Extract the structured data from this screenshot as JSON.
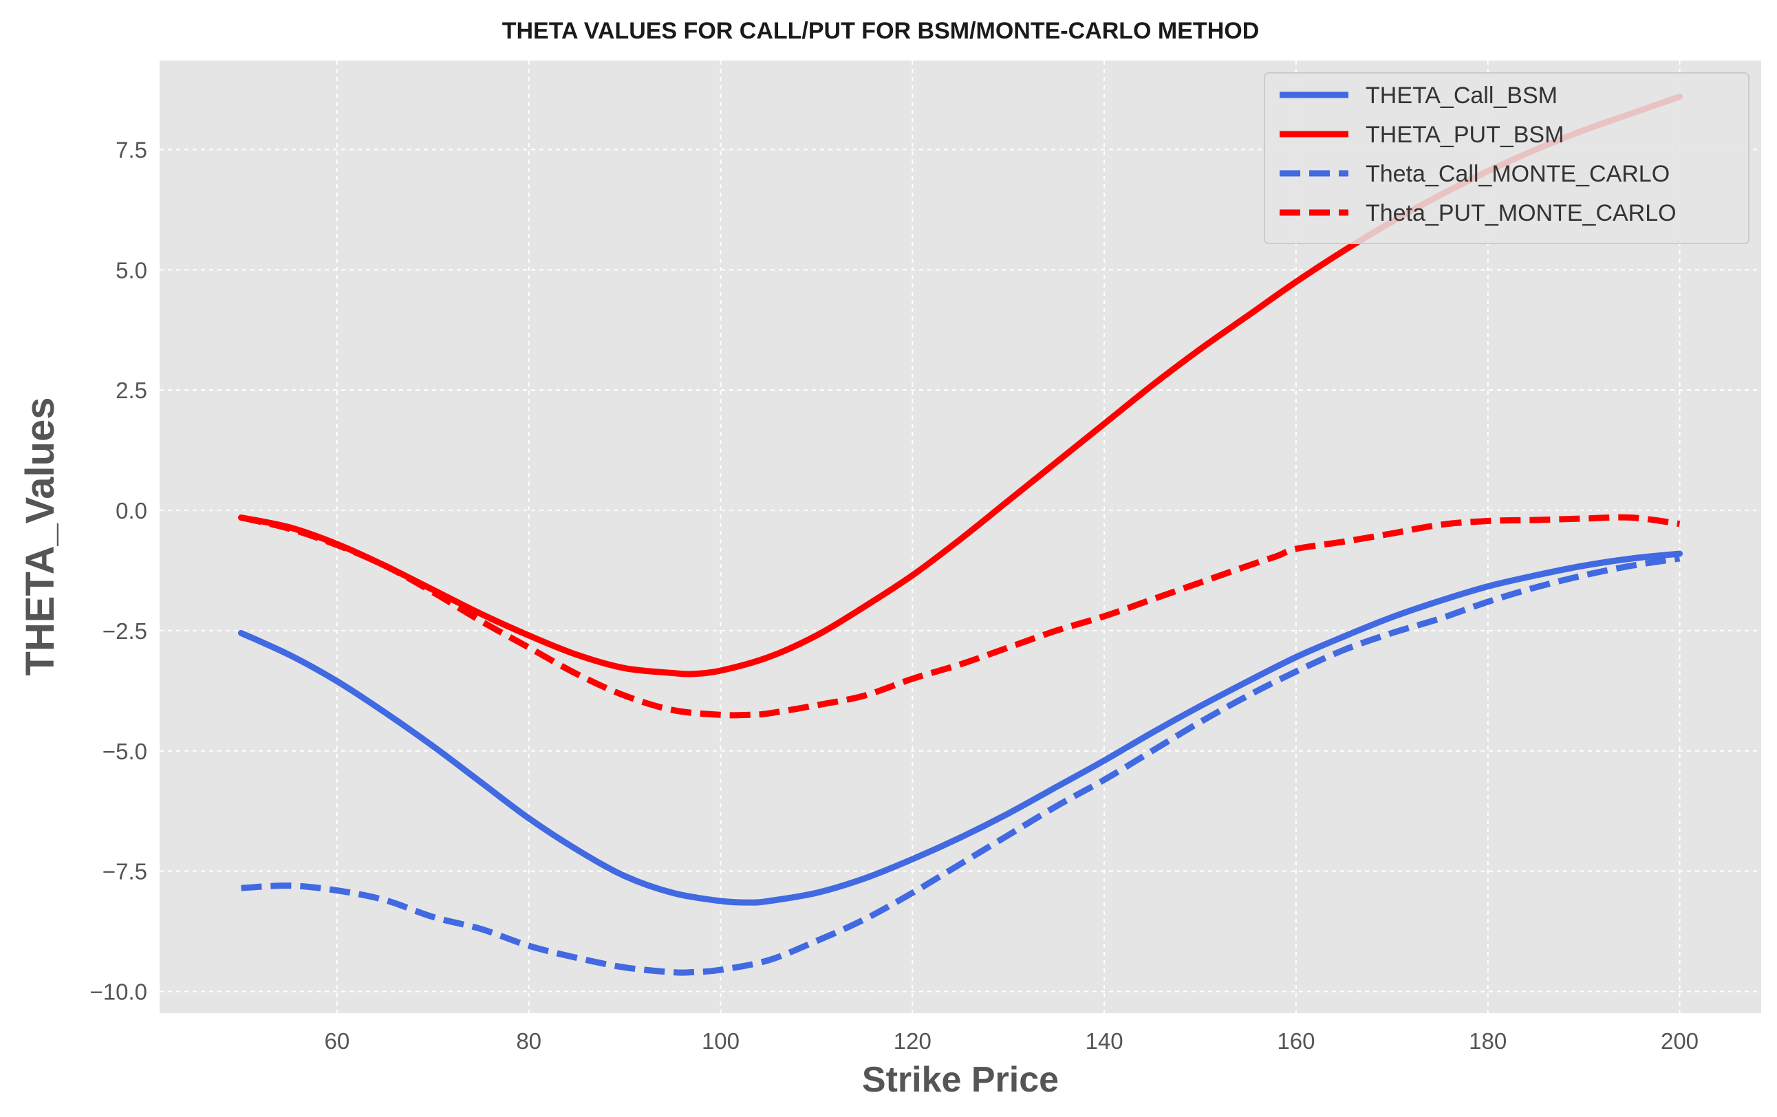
{
  "colors": {
    "background": "#ffffff",
    "plot_background": "#e5e5e5",
    "grid": "#ffffff",
    "call": "#4169e1",
    "put": "#ff0000"
  },
  "chart_data": {
    "type": "line",
    "title": "THETA VALUES FOR CALL/PUT FOR BSM/MONTE-CARLO METHOD",
    "xlabel": "Strike Price",
    "ylabel": "THETA_Values",
    "xlim": [
      41.5,
      208.5
    ],
    "ylim": [
      -10.45,
      9.35
    ],
    "xticks": [
      60,
      80,
      100,
      120,
      140,
      160,
      180,
      200
    ],
    "xtick_labels": [
      "60",
      "80",
      "100",
      "120",
      "140",
      "160",
      "180",
      "200"
    ],
    "yticks": [
      -10.0,
      -7.5,
      -5.0,
      -2.5,
      0.0,
      2.5,
      5.0,
      7.5
    ],
    "ytick_labels": [
      "−10.0",
      "−7.5",
      "−5.0",
      "−2.5",
      "0.0",
      "2.5",
      "5.0",
      "7.5"
    ],
    "grid": true,
    "legend_position": "top-right",
    "series": [
      {
        "name": "THETA_Call_BSM",
        "style": "solid",
        "color": "#4169e1",
        "x": [
          50,
          55,
          60,
          65,
          70,
          75,
          80,
          85,
          90,
          95,
          100,
          103,
          105,
          110,
          115,
          120,
          125,
          130,
          135,
          140,
          145,
          150,
          155,
          160,
          165,
          170,
          175,
          180,
          185,
          190,
          195,
          200
        ],
        "y": [
          -2.55,
          -3.0,
          -3.55,
          -4.2,
          -4.9,
          -5.65,
          -6.4,
          -7.05,
          -7.6,
          -7.95,
          -8.12,
          -8.15,
          -8.12,
          -7.95,
          -7.65,
          -7.25,
          -6.8,
          -6.3,
          -5.75,
          -5.2,
          -4.62,
          -4.07,
          -3.55,
          -3.05,
          -2.62,
          -2.22,
          -1.88,
          -1.58,
          -1.35,
          -1.15,
          -1.0,
          -0.9
        ]
      },
      {
        "name": "THETA_PUT_BSM",
        "style": "solid",
        "color": "#ff0000",
        "x": [
          50,
          55,
          60,
          65,
          70,
          75,
          80,
          85,
          90,
          95,
          97,
          100,
          105,
          110,
          115,
          120,
          125,
          130,
          135,
          140,
          145,
          150,
          155,
          160,
          165,
          170,
          175,
          180,
          185,
          190,
          195,
          200
        ],
        "y": [
          -0.15,
          -0.35,
          -0.7,
          -1.15,
          -1.65,
          -2.15,
          -2.6,
          -3.0,
          -3.28,
          -3.38,
          -3.4,
          -3.33,
          -3.05,
          -2.6,
          -2.0,
          -1.35,
          -0.6,
          0.2,
          1.0,
          1.8,
          2.6,
          3.35,
          4.05,
          4.75,
          5.4,
          6.0,
          6.55,
          7.05,
          7.5,
          7.9,
          8.25,
          8.6
        ]
      },
      {
        "name": "Theta_Call_MONTE_CARLO",
        "style": "dashed",
        "color": "#4169e1",
        "x": [
          50,
          55,
          60,
          65,
          70,
          75,
          80,
          85,
          90,
          95,
          97,
          100,
          105,
          110,
          115,
          120,
          125,
          130,
          135,
          140,
          145,
          150,
          155,
          160,
          165,
          170,
          175,
          180,
          185,
          190,
          195,
          200
        ],
        "y": [
          -7.85,
          -7.8,
          -7.9,
          -8.1,
          -8.45,
          -8.7,
          -9.05,
          -9.3,
          -9.5,
          -9.6,
          -9.6,
          -9.55,
          -9.35,
          -8.95,
          -8.5,
          -7.95,
          -7.35,
          -6.75,
          -6.15,
          -5.6,
          -5.0,
          -4.4,
          -3.85,
          -3.35,
          -2.9,
          -2.55,
          -2.25,
          -1.9,
          -1.6,
          -1.35,
          -1.15,
          -1.0
        ]
      },
      {
        "name": "Theta_PUT_MONTE_CARLO",
        "style": "dashed",
        "color": "#ff0000",
        "x": [
          50,
          55,
          60,
          65,
          70,
          75,
          80,
          85,
          90,
          95,
          100,
          103,
          105,
          110,
          115,
          120,
          125,
          130,
          135,
          140,
          145,
          150,
          155,
          158,
          160,
          165,
          170,
          175,
          180,
          185,
          190,
          195,
          200
        ],
        "y": [
          -0.15,
          -0.38,
          -0.72,
          -1.15,
          -1.7,
          -2.3,
          -2.85,
          -3.4,
          -3.85,
          -4.15,
          -4.25,
          -4.25,
          -4.22,
          -4.05,
          -3.85,
          -3.5,
          -3.2,
          -2.85,
          -2.5,
          -2.2,
          -1.85,
          -1.5,
          -1.15,
          -0.95,
          -0.8,
          -0.65,
          -0.48,
          -0.3,
          -0.22,
          -0.2,
          -0.17,
          -0.15,
          -0.28
        ]
      }
    ]
  }
}
